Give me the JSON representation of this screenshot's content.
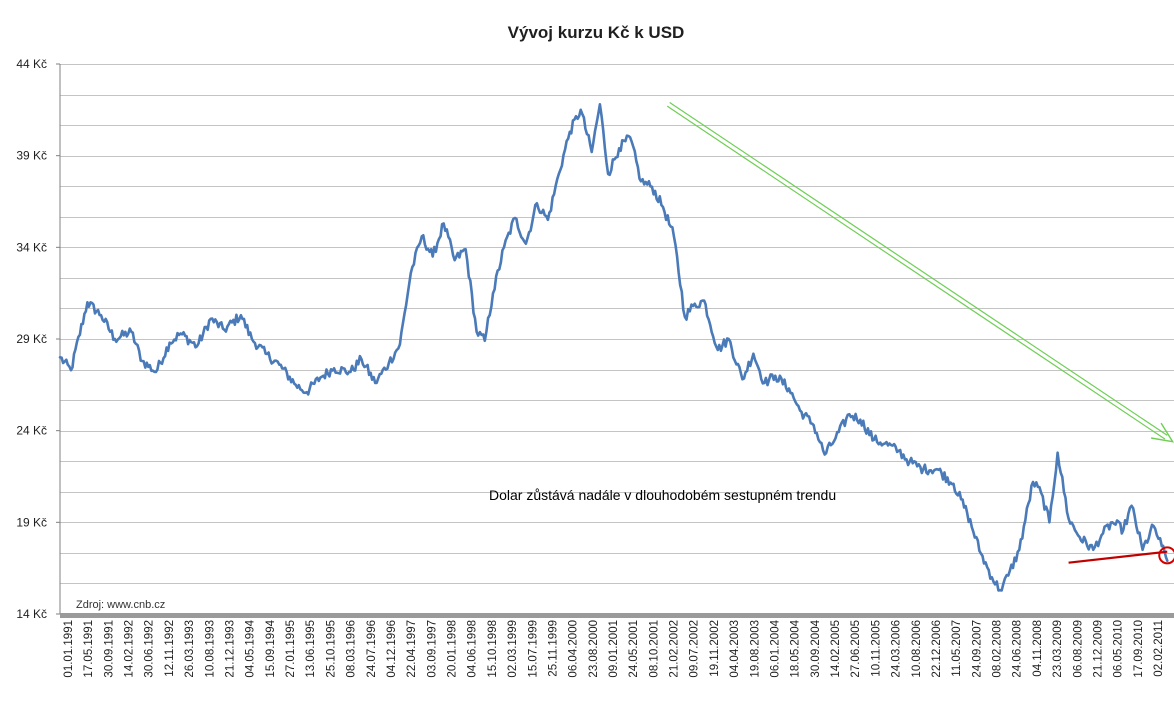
{
  "chart_data": {
    "type": "line",
    "title": "Vývoj kurzu Kč k USD",
    "ylim": [
      14,
      44
    ],
    "y_ticks": [
      "44 Kč",
      "39 Kč",
      "34 Kč",
      "29 Kč",
      "24 Kč",
      "19 Kč",
      "14 Kč"
    ],
    "y_tick_values": [
      44,
      39,
      34,
      29,
      24,
      19,
      14
    ],
    "grid": "horizontal",
    "x_tick_labels": [
      "01.01.1991",
      "17.05.1991",
      "30.09.1991",
      "14.02.1992",
      "30.06.1992",
      "12.11.1992",
      "26.03.1993",
      "10.08.1993",
      "21.12.1993",
      "04.05.1994",
      "15.09.1994",
      "27.01.1995",
      "13.06.1995",
      "25.10.1995",
      "08.03.1996",
      "24.07.1996",
      "04.12.1996",
      "22.04.1997",
      "03.09.1997",
      "20.01.1998",
      "04.06.1998",
      "15.10.1998",
      "02.03.1999",
      "15.07.1999",
      "25.11.1999",
      "06.04.2000",
      "23.08.2000",
      "09.01.2001",
      "24.05.2001",
      "08.10.2001",
      "21.02.2002",
      "09.07.2002",
      "19.11.2002",
      "04.04.2003",
      "19.08.2003",
      "06.01.2004",
      "18.05.2004",
      "30.09.2004",
      "14.02.2005",
      "27.06.2005",
      "10.11.2005",
      "24.03.2006",
      "10.08.2006",
      "22.12.2006",
      "11.05.2007",
      "24.09.2007",
      "08.02.2008",
      "24.06.2008",
      "04.11.2008",
      "23.03.2009",
      "06.08.2009",
      "21.12.2009",
      "06.05.2010",
      "17.09.2010",
      "02.02.2011"
    ],
    "series": [
      {
        "color": "#4a7ab8",
        "x": [
          1991.0,
          1991.2,
          1991.5,
          1991.75,
          1992.0,
          1992.3,
          1992.5,
          1992.75,
          1993.0,
          1993.2,
          1993.5,
          1993.75,
          1994.0,
          1994.3,
          1994.5,
          1994.75,
          1995.0,
          1995.3,
          1995.5,
          1995.75,
          1996.0,
          1996.3,
          1996.5,
          1996.75,
          1997.0,
          1997.2,
          1997.4,
          1997.6,
          1997.8,
          1998.0,
          1998.2,
          1998.4,
          1998.6,
          1998.75,
          1998.9,
          1999.1,
          1999.3,
          1999.5,
          1999.7,
          1999.9,
          2000.1,
          2000.3,
          2000.5,
          2000.7,
          2000.85,
          2001.0,
          2001.2,
          2001.4,
          2001.6,
          2001.8,
          2002.0,
          2002.2,
          2002.4,
          2002.55,
          2002.75,
          2003.0,
          2003.2,
          2003.45,
          2003.65,
          2003.85,
          2004.05,
          2004.3,
          2004.5,
          2004.75,
          2004.95,
          2005.15,
          2005.4,
          2005.6,
          2005.85,
          2006.05,
          2006.3,
          2006.5,
          2006.75,
          2007.0,
          2007.3,
          2007.55,
          2007.8,
          2008.0,
          2008.15,
          2008.3,
          2008.5,
          2008.75,
          2008.9,
          2009.05,
          2009.2,
          2009.4,
          2009.6,
          2009.85,
          2010.0,
          2010.2,
          2010.4,
          2010.55,
          2010.75,
          2010.95,
          2011.1,
          2011.2
        ],
        "y": [
          28.0,
          27.3,
          31.0,
          30.3,
          29.0,
          29.4,
          27.8,
          27.2,
          28.8,
          29.3,
          28.6,
          30.1,
          29.5,
          30.3,
          29.0,
          28.2,
          27.6,
          26.5,
          26.1,
          26.9,
          27.4,
          27.2,
          27.9,
          26.6,
          27.7,
          28.7,
          32.6,
          34.6,
          33.5,
          35.3,
          33.3,
          33.9,
          29.4,
          28.9,
          31.5,
          34.0,
          35.6,
          34.2,
          36.4,
          35.5,
          38.0,
          40.3,
          41.5,
          39.2,
          41.8,
          38.0,
          39.4,
          40.0,
          37.6,
          37.3,
          36.2,
          34.6,
          30.2,
          30.8,
          31.1,
          28.4,
          29.0,
          26.8,
          28.2,
          26.6,
          27.0,
          26.3,
          25.1,
          24.3,
          22.7,
          23.6,
          24.9,
          24.6,
          23.5,
          23.3,
          22.9,
          22.3,
          21.9,
          21.9,
          21.1,
          19.5,
          17.3,
          16.0,
          15.3,
          16.1,
          17.5,
          21.2,
          20.6,
          19.0,
          22.8,
          19.2,
          18.2,
          17.5,
          18.3,
          19.0,
          18.6,
          19.9,
          17.5,
          18.8,
          17.7,
          16.9
        ]
      }
    ],
    "trend_arrow": {
      "color": "#6fce55",
      "from": {
        "x": 2002.1,
        "y": 41.8
      },
      "to": {
        "x": 2011.3,
        "y": 23.4
      }
    },
    "support_line": {
      "color": "#c00000",
      "from": {
        "x": 2009.4,
        "y": 16.8
      },
      "to": {
        "x": 2011.2,
        "y": 17.4
      }
    },
    "highlight_circle": {
      "color": "#d40000",
      "x": 2011.2,
      "y": 17.2
    },
    "annotations": [
      {
        "text": "Dolar zůstává nadále v dlouhodobém sestupném trendu"
      }
    ],
    "source_note": "Zdroj: www.cnb.cz"
  }
}
